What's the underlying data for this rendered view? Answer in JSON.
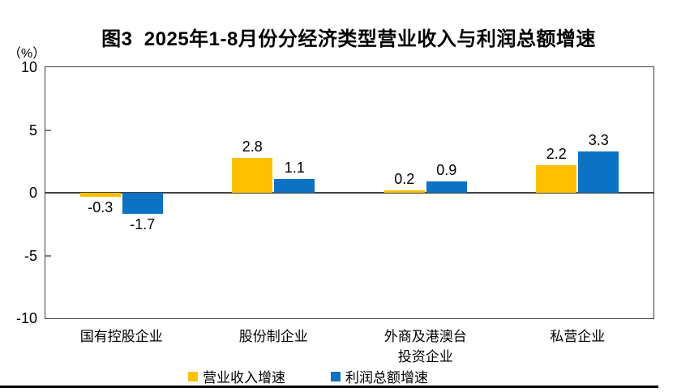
{
  "figure": {
    "title": "图3  2025年1-8月份分经济类型营业收入与利润总额增速",
    "unit_label": "（%）"
  },
  "chart_data": {
    "type": "bar",
    "title": "图3 2025年1-8月份分经济类型营业收入与利润总额增速",
    "unit": "%",
    "categories": [
      "国有控股企业",
      "股份制企业",
      "外商及港澳台\n投资企业",
      "私营企业"
    ],
    "series": [
      {
        "name": "营业收入增速",
        "color": "#FFC000",
        "values": [
          -0.3,
          2.8,
          0.2,
          2.2
        ]
      },
      {
        "name": "利润总额增速",
        "color": "#0C72C4",
        "values": [
          -1.7,
          1.1,
          0.9,
          3.3
        ]
      }
    ],
    "ylim": [
      -10,
      10
    ],
    "yticks": [
      10,
      5,
      0,
      -5,
      -10
    ],
    "grid": false,
    "legend_position": "bottom",
    "value_labels": true,
    "value_label_format": "0.0"
  },
  "style_colors": {
    "axis_line": "#404040",
    "minor_tick": "#808080",
    "bottom_rule": "#000000",
    "text": "#000000"
  }
}
